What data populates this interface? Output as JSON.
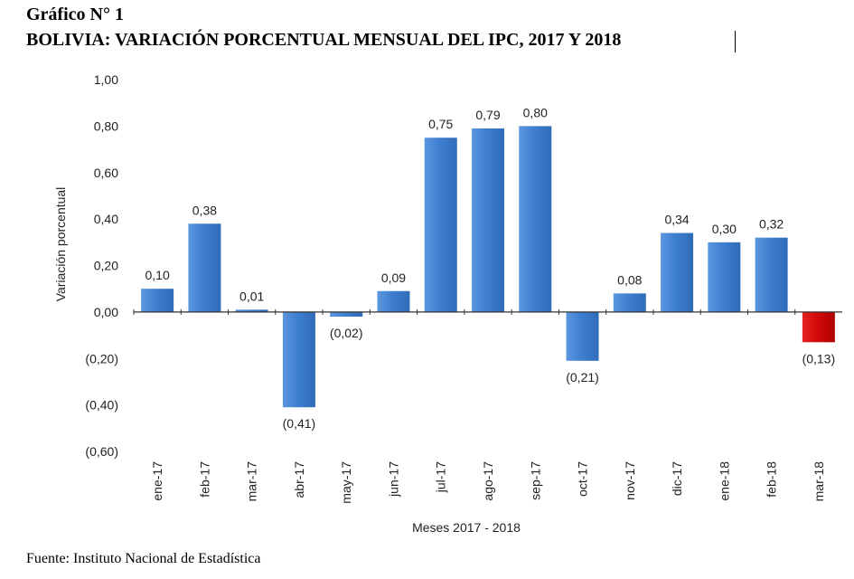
{
  "header": {
    "figure_number": "Gráfico N° 1",
    "title": "BOLIVIA: VARIACIÓN PORCENTUAL MENSUAL DEL IPC, 2017 Y 2018"
  },
  "footer": {
    "source": "Fuente: Instituto Nacional de Estadística"
  },
  "chart_data": {
    "type": "bar",
    "title": "BOLIVIA: VARIACIÓN PORCENTUAL MENSUAL DEL IPC, 2017 Y 2018",
    "xlabel": "Meses 2017 - 2018",
    "ylabel": "Variación porcentual",
    "categories": [
      "ene-17",
      "feb-17",
      "mar-17",
      "abr-17",
      "may-17",
      "jun-17",
      "jul-17",
      "ago-17",
      "sep-17",
      "oct-17",
      "nov-17",
      "dic-17",
      "ene-18",
      "feb-18",
      "mar-18"
    ],
    "values": [
      0.1,
      0.38,
      0.01,
      -0.41,
      -0.02,
      0.09,
      0.75,
      0.79,
      0.8,
      -0.21,
      0.08,
      0.34,
      0.3,
      0.32,
      -0.13
    ],
    "data_labels": [
      "0,10",
      "0,38",
      "0,01",
      "(0,41)",
      "(0,02)",
      "0,09",
      "0,75",
      "0,79",
      "0,80",
      "(0,21)",
      "0,08",
      "0,34",
      "0,30",
      "0,32",
      "(0,13)"
    ],
    "yticks": [
      1.0,
      0.8,
      0.6,
      0.4,
      0.2,
      0.0,
      -0.2,
      -0.4,
      -0.6
    ],
    "ytick_labels": [
      "1,00",
      "0,80",
      "0,60",
      "0,40",
      "0,20",
      "0,00",
      "(0,20)",
      "(0,40)",
      "(0,60)"
    ],
    "ylim": [
      -0.6,
      1.0
    ],
    "grid": false,
    "legend": "none",
    "colors": {
      "bar": "#3f7fd0",
      "bar_highlight": "#d40a0a",
      "axis": "#333333"
    },
    "highlight_index": 14
  }
}
